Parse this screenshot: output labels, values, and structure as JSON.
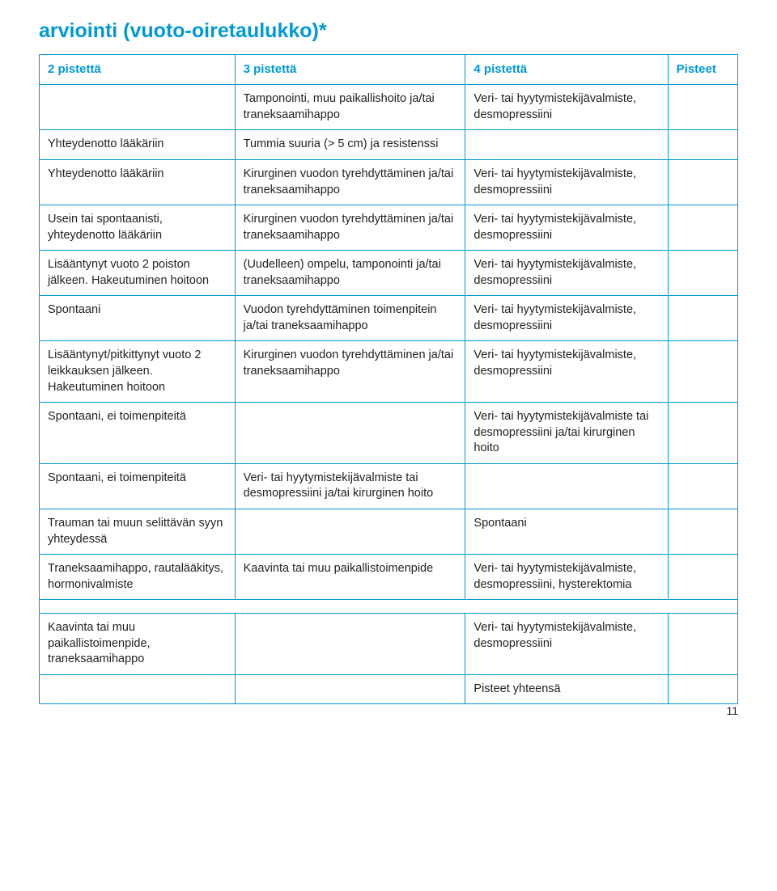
{
  "title": "arviointi (vuoto-oiretaulukko)*",
  "colors": {
    "accent": "#0099d4",
    "text": "#222222",
    "green": "#6aa84f",
    "background": "#ffffff"
  },
  "headers": {
    "c1": "2 pistettä",
    "c2": "3 pistettä",
    "c3": "4 pistettä",
    "c4": "Pisteet"
  },
  "rows": [
    {
      "c1": "",
      "c2": "Tamponointi, muu paikallishoito ja/tai traneksaamihappo",
      "c3": "Veri- tai hyytymistekijävalmiste, desmopressiini",
      "c4": ""
    },
    {
      "c1": "Yhteydenotto lääkäriin",
      "c2": "Tummia suuria (> 5 cm) ja resistenssi",
      "c3": "",
      "c4": ""
    },
    {
      "c1": "Yhteydenotto lääkäriin",
      "c2": "Kirurginen vuodon tyrehdyttäminen ja/tai traneksaamihappo",
      "c3": "Veri- tai hyytymistekijävalmiste, desmopressiini",
      "c4": ""
    },
    {
      "c1": "Usein tai spontaanisti, yhteydenotto lääkäriin",
      "c2": "Kirurginen vuodon tyrehdyttäminen ja/tai traneksaamihappo",
      "c3": "Veri- tai hyytymistekijävalmiste, desmopressiini",
      "c4": ""
    },
    {
      "c1": "Lisääntynyt vuoto 2 poiston jälkeen. Hakeutuminen hoitoon",
      "c2": "(Uudelleen) ompelu, tamponointi ja/tai traneksaamihappo",
      "c3": "Veri- tai hyytymistekijävalmiste, desmopressiini",
      "c4": ""
    },
    {
      "c1": "Spontaani",
      "c2": "Vuodon tyrehdyttäminen toimenpitein ja/tai traneksaamihappo",
      "c3": "Veri- tai hyytymistekijävalmiste, desmopressiini",
      "c4": ""
    },
    {
      "c1": "Lisääntynyt/pitkittynyt vuoto 2 leikkauksen jälkeen. Hakeutuminen hoitoon",
      "c2": "Kirurginen vuodon tyrehdyttäminen ja/tai traneksaamihappo",
      "c3": "Veri- tai hyytymistekijävalmiste, desmopressiini",
      "c4": ""
    },
    {
      "c1": "Spontaani, ei toimenpiteitä",
      "c2": "",
      "c3": "Veri- tai hyytymistekijävalmiste tai desmopressiini ja/tai kirurginen hoito",
      "c4": ""
    },
    {
      "c1": "Spontaani, ei toimenpiteitä",
      "c2": "Veri- tai hyytymistekijävalmiste tai desmopressiini ja/tai kirurginen hoito",
      "c3": "",
      "c4": ""
    },
    {
      "c1": "Trauman tai muun selittävän syyn yhteydessä",
      "c2": "",
      "c3": "Spontaani",
      "c4": ""
    },
    {
      "c1": "Traneksaamihappo, rautalääkitys, hormonivalmiste",
      "c2": "Kaavinta tai muu paikallistoimenpide",
      "c3": "Veri- tai hyytymistekijävalmiste, desmopressiini, hysterektomia",
      "c4": ""
    }
  ],
  "bottom_rows": [
    {
      "c1": "Kaavinta tai muu paikallistoimenpide, traneksaamihappo",
      "c2": "",
      "c3": "Veri- tai hyytymistekijävalmiste, desmopressiini",
      "c4": ""
    },
    {
      "c1": "",
      "c2": "",
      "c3": "Pisteet yhteensä",
      "c3_class": "green-text",
      "c4": ""
    }
  ],
  "page_number": "11"
}
